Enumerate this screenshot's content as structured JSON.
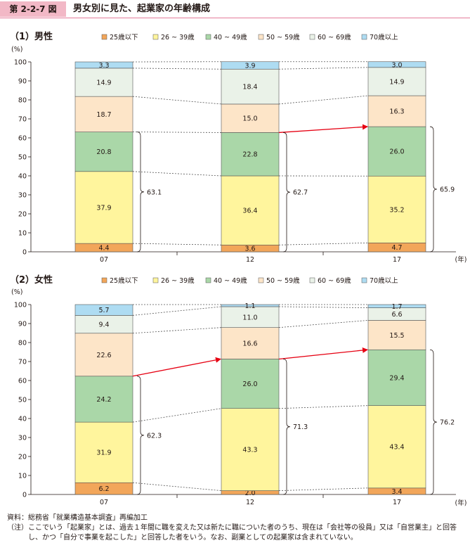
{
  "figure": {
    "number": "第 2-2-7 図",
    "title": "男女別に見た、起業家の年齢構成"
  },
  "colors": {
    "badge": "#f2b8c6",
    "rule": "#e57c9a",
    "arrow": "#e60012",
    "segments": [
      "#f2a65a",
      "#fff59d",
      "#aad7a8",
      "#fde5c8",
      "#eaf2e8",
      "#aedcf2"
    ]
  },
  "notes": [
    {
      "label": "資料：",
      "text": "総務省「就業構造基本調査」再編加工"
    },
    {
      "label": "（注）",
      "text": "ここでいう「起業家」とは、過去１年間に職を変えた又は新たに職についた者のうち、現在は「会社等の役員」又は「自営業主」と回答し、かつ「自分で事業を起こした」と回答した者をいう。なお、副業としての起業家は含まれていない。"
    }
  ],
  "chart_data": [
    {
      "type": "bar",
      "stacked": true,
      "title": "（1）男性",
      "ylabel": "(%)",
      "xlabel": "(年)",
      "ylim": [
        0,
        100
      ],
      "yticks": [
        0,
        10,
        20,
        30,
        40,
        50,
        60,
        70,
        80,
        90,
        100
      ],
      "legend_position": "top",
      "categories": [
        "07",
        "12",
        "17"
      ],
      "series": [
        {
          "name": "25歳以下",
          "values": [
            4.4,
            3.6,
            4.7
          ]
        },
        {
          "name": "26 ~ 39歳",
          "values": [
            37.9,
            36.4,
            35.2
          ]
        },
        {
          "name": "40 ~ 49歳",
          "values": [
            20.8,
            22.8,
            26.0
          ]
        },
        {
          "name": "50 ~ 59歳",
          "values": [
            18.7,
            15.0,
            16.3
          ]
        },
        {
          "name": "60 ~ 69歳",
          "values": [
            14.9,
            18.4,
            14.9
          ]
        },
        {
          "name": "70歳以上",
          "values": [
            3.3,
            3.9,
            3.0
          ]
        }
      ],
      "value_labels": [
        [
          "4.4",
          "3.6",
          "4.7"
        ],
        [
          "37.9",
          "36.4",
          "35.2"
        ],
        [
          "20.8",
          "22.8",
          "26.0"
        ],
        [
          "18.7",
          "15.0",
          "16.3"
        ],
        [
          "14.9",
          "18.4",
          "14.9"
        ],
        [
          "3.3",
          "3.9",
          "3.0"
        ]
      ],
      "brace_totals": [
        "63.1",
        "62.7",
        "65.9"
      ],
      "arrow_between": [
        1,
        2
      ]
    },
    {
      "type": "bar",
      "stacked": true,
      "title": "（2）女性",
      "ylabel": "(%)",
      "xlabel": "(年)",
      "ylim": [
        0,
        100
      ],
      "yticks": [
        0,
        10,
        20,
        30,
        40,
        50,
        60,
        70,
        80,
        90,
        100
      ],
      "legend_position": "top",
      "categories": [
        "07",
        "12",
        "17"
      ],
      "series": [
        {
          "name": "25歳以下",
          "values": [
            6.2,
            2.0,
            3.4
          ]
        },
        {
          "name": "26 ~ 39歳",
          "values": [
            31.9,
            43.3,
            43.4
          ]
        },
        {
          "name": "40 ~ 49歳",
          "values": [
            24.2,
            26.0,
            29.4
          ]
        },
        {
          "name": "50 ~ 59歳",
          "values": [
            22.6,
            16.6,
            15.5
          ]
        },
        {
          "name": "60 ~ 69歳",
          "values": [
            9.4,
            11.0,
            6.6
          ]
        },
        {
          "name": "70歳以上",
          "values": [
            5.7,
            1.1,
            1.7
          ]
        }
      ],
      "value_labels": [
        [
          "6.2",
          "2.0",
          "3.4"
        ],
        [
          "31.9",
          "43.3",
          "43.4"
        ],
        [
          "24.2",
          "26.0",
          "29.4"
        ],
        [
          "22.6",
          "16.6",
          "15.5"
        ],
        [
          "9.4",
          "11.0",
          "6.6"
        ],
        [
          "5.7",
          "1.1",
          "1.7"
        ]
      ],
      "brace_totals": [
        "62.3",
        "71.3",
        "76.2"
      ],
      "arrow_between": [
        0,
        1,
        2
      ]
    }
  ]
}
